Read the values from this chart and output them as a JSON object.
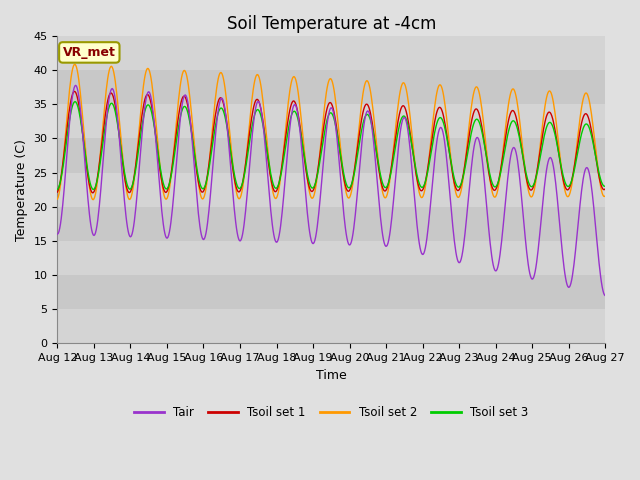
{
  "title": "Soil Temperature at -4cm",
  "xlabel": "Time",
  "ylabel": "Temperature (C)",
  "ylim": [
    0,
    45
  ],
  "x_tick_labels": [
    "Aug 12",
    "Aug 13",
    "Aug 14",
    "Aug 15",
    "Aug 16",
    "Aug 17",
    "Aug 18",
    "Aug 19",
    "Aug 20",
    "Aug 21",
    "Aug 22",
    "Aug 23",
    "Aug 24",
    "Aug 25",
    "Aug 26",
    "Aug 27"
  ],
  "colors": {
    "Tair": "#9933cc",
    "Tsoil1": "#cc0000",
    "Tsoil2": "#ff9900",
    "Tsoil3": "#00cc00"
  },
  "bg_color": "#e0e0e0",
  "band_light": "#d0d0d0",
  "band_dark": "#c0c0c0",
  "vr_met_bg": "#ffffcc",
  "vr_met_text": "#880000",
  "vr_met_edge": "#999900",
  "legend_labels": [
    "Tair",
    "Tsoil set 1",
    "Tsoil set 2",
    "Tsoil set 3"
  ],
  "title_fontsize": 12,
  "label_fontsize": 9,
  "tick_fontsize": 8
}
